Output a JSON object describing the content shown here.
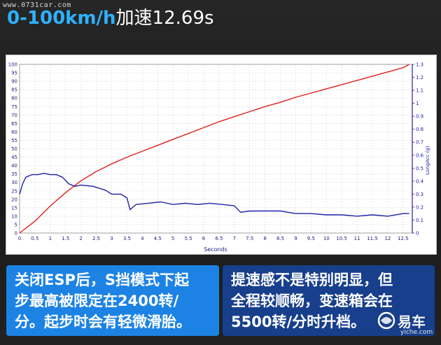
{
  "watermark": "www.0731car.com",
  "headline": {
    "main": "0-100km/h",
    "sub": "加速12.69s"
  },
  "cards": {
    "left": [
      "关闭ESP后，S挡模式下起",
      "步最高被限定在2400转/",
      "分。起步时会有轻微滑胎。"
    ],
    "right": [
      "提速感不是特别明显，但",
      "全程较顺畅，变速箱会在",
      "5500转/分时升档。"
    ]
  },
  "logo": {
    "name": "易车",
    "url": "yiche.com"
  },
  "colors": {
    "speed": "#e0201b",
    "accel": "#1e22a8",
    "card_left": "#1c83e4",
    "card_right": "#173f8c",
    "headline_accent": "#2fb1ff"
  },
  "chart_data": {
    "type": "line",
    "xlabel": "Seconds",
    "ylabel": "",
    "y2label": "LongAcc (g)",
    "xlim": [
      0,
      12.8
    ],
    "ylim": [
      0,
      100
    ],
    "y2lim": [
      0,
      1.3
    ],
    "x_ticks": [
      "0",
      "0.5",
      "1",
      "1.5",
      "2",
      "2.5",
      "3",
      "3.5",
      "4",
      "4.5",
      "5",
      "5.5",
      "6",
      "6.5",
      "7",
      "7.5",
      "8",
      "8.5",
      "9",
      "9.5",
      "10",
      "10.5",
      "11",
      "11.5",
      "12",
      "12.5"
    ],
    "y_ticks": [
      "0",
      "5",
      "10",
      "15",
      "20",
      "25",
      "30",
      "35",
      "40",
      "45",
      "50",
      "55",
      "60",
      "65",
      "70",
      "75",
      "80",
      "85",
      "90",
      "95",
      "100"
    ],
    "y2_ticks": [
      "0",
      "0.1",
      "0.2",
      "0.3",
      "0.4",
      "0.5",
      "0.6",
      "0.7",
      "0.8",
      "0.9",
      "1",
      "1.1",
      "1.2",
      "1.3"
    ],
    "grid": true,
    "series": [
      {
        "axis": "left",
        "x": [
          0,
          0.5,
          1,
          1.5,
          2,
          2.5,
          3,
          3.5,
          4,
          4.5,
          5,
          5.5,
          6,
          6.5,
          7,
          7.5,
          8,
          8.5,
          9,
          9.5,
          10,
          10.5,
          11,
          11.5,
          12,
          12.5,
          12.7
        ],
        "values": [
          0,
          7,
          16,
          24,
          31,
          36.5,
          41,
          45,
          48.5,
          52,
          55.5,
          59,
          62.5,
          66,
          69,
          72,
          75,
          77.5,
          80.5,
          83,
          85.5,
          88,
          90.5,
          93,
          95.5,
          98,
          100
        ]
      },
      {
        "axis": "right",
        "x": [
          0,
          0.1,
          0.2,
          0.4,
          0.6,
          0.8,
          1.0,
          1.2,
          1.4,
          1.6,
          1.8,
          2.0,
          2.4,
          2.8,
          3.0,
          3.3,
          3.5,
          3.6,
          3.8,
          4.2,
          4.6,
          5.0,
          5.4,
          5.8,
          6.2,
          6.6,
          7.0,
          7.2,
          7.5,
          8.0,
          8.5,
          9.0,
          9.5,
          10.0,
          10.5,
          11.0,
          11.5,
          12.0,
          12.5,
          12.7
        ],
        "values": [
          0.3,
          0.38,
          0.43,
          0.45,
          0.45,
          0.46,
          0.45,
          0.45,
          0.43,
          0.38,
          0.36,
          0.37,
          0.36,
          0.33,
          0.3,
          0.3,
          0.27,
          0.18,
          0.22,
          0.23,
          0.24,
          0.22,
          0.23,
          0.22,
          0.23,
          0.22,
          0.21,
          0.16,
          0.17,
          0.17,
          0.17,
          0.15,
          0.15,
          0.14,
          0.14,
          0.13,
          0.14,
          0.13,
          0.15,
          0.15
        ]
      }
    ]
  }
}
